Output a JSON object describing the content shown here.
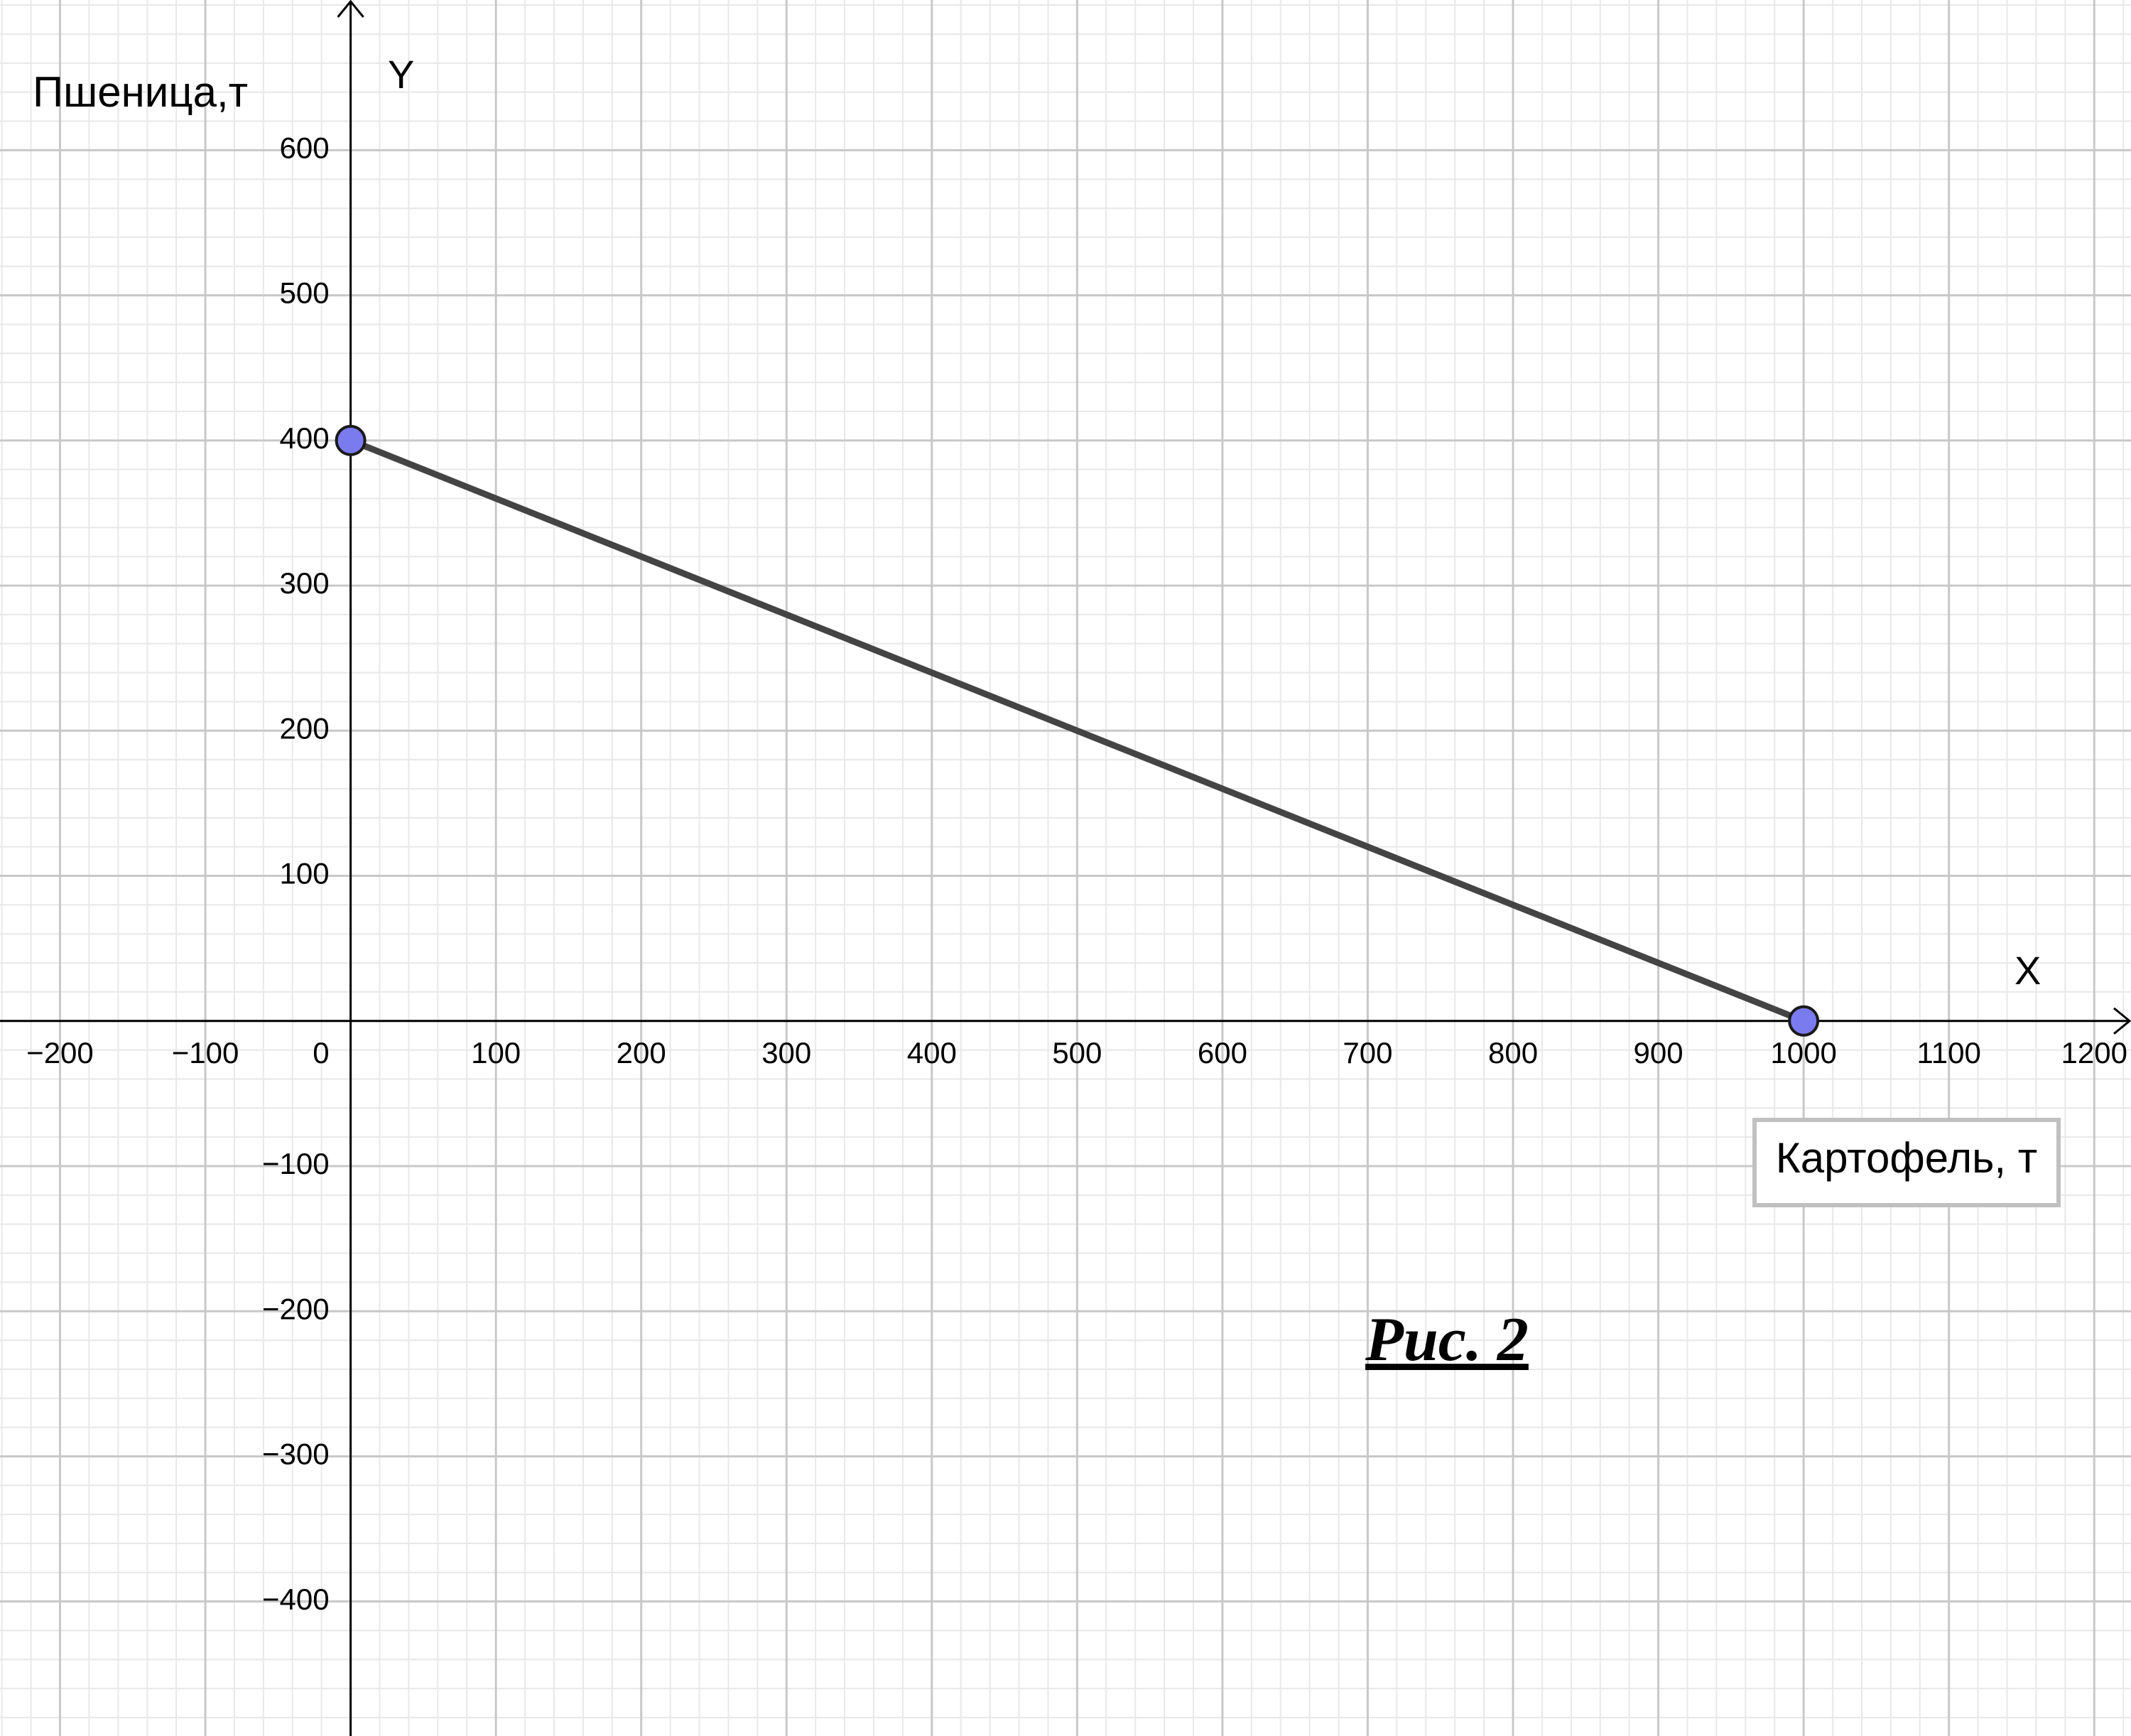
{
  "chart_data": {
    "type": "line",
    "x": [
      0,
      1000
    ],
    "values": [
      400,
      0
    ],
    "line_color": "#444444",
    "point_color": "#7b7bf0",
    "x_label": "X",
    "y_label": "Y",
    "y_title": "Пшеница,т",
    "x_title": "Картофель, т",
    "annotation": "Рис. 2",
    "xlim": [
      -241.3,
      1225.3
    ],
    "ylim": [
      -492.7,
      703.5
    ],
    "xticks": [
      {
        "value": -200,
        "label": "−200"
      },
      {
        "value": -100,
        "label": "−100"
      },
      0,
      100,
      200,
      300,
      400,
      500,
      600,
      700,
      800,
      900,
      1000,
      1100,
      1200
    ],
    "yticks": [
      {
        "value": -400,
        "label": "−400"
      },
      {
        "value": -300,
        "label": "−300"
      },
      {
        "value": -200,
        "label": "−200"
      },
      {
        "value": -100,
        "label": "−100"
      },
      100,
      200,
      300,
      400,
      500,
      600
    ],
    "grid": true,
    "minor_grid": true
  }
}
